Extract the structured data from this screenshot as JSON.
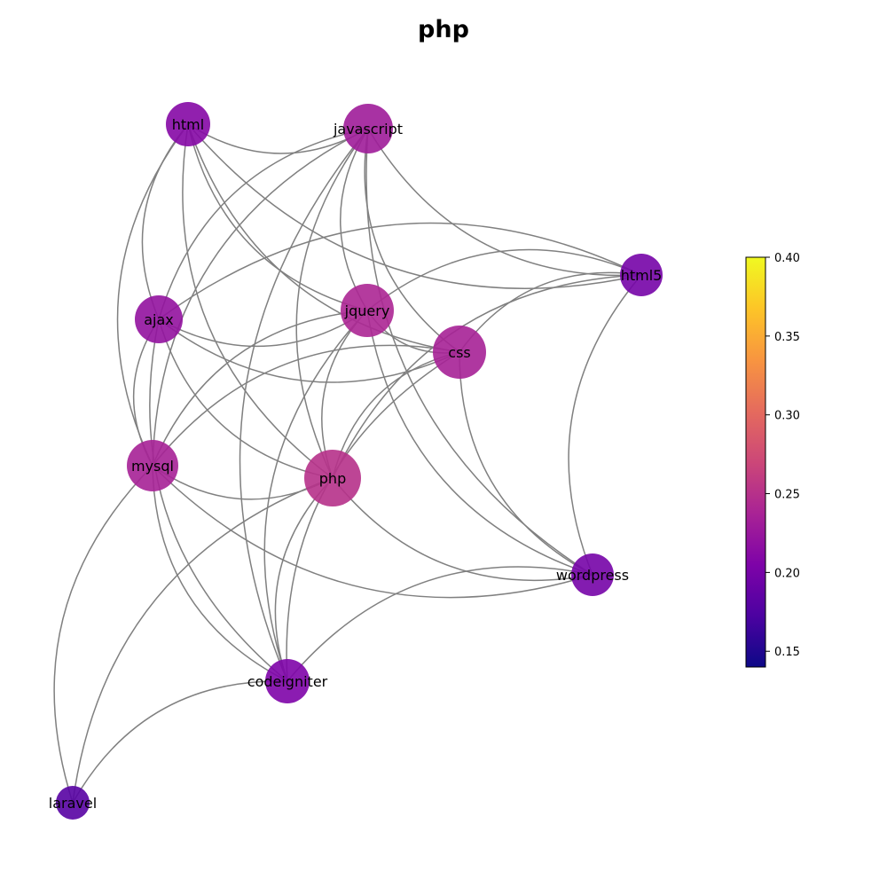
{
  "title": "php",
  "graph": {
    "nodes": [
      {
        "id": "html",
        "label": "html",
        "value": 0.21
      },
      {
        "id": "javascript",
        "label": "javascript",
        "value": 0.23
      },
      {
        "id": "html5",
        "label": "html5",
        "value": 0.2
      },
      {
        "id": "ajax",
        "label": "ajax",
        "value": 0.22
      },
      {
        "id": "jquery",
        "label": "jquery",
        "value": 0.24
      },
      {
        "id": "css",
        "label": "css",
        "value": 0.235
      },
      {
        "id": "mysql",
        "label": "mysql",
        "value": 0.235
      },
      {
        "id": "php",
        "label": "php",
        "value": 0.25
      },
      {
        "id": "wordpress",
        "label": "wordpress",
        "value": 0.2
      },
      {
        "id": "codeigniter",
        "label": "codeigniter",
        "value": 0.205
      },
      {
        "id": "laravel",
        "label": "laravel",
        "value": 0.18
      }
    ],
    "edges": [
      [
        "html",
        "javascript"
      ],
      [
        "html",
        "jquery"
      ],
      [
        "html",
        "css"
      ],
      [
        "html",
        "php"
      ],
      [
        "html",
        "mysql"
      ],
      [
        "html",
        "ajax"
      ],
      [
        "html",
        "html5"
      ],
      [
        "javascript",
        "jquery"
      ],
      [
        "javascript",
        "css"
      ],
      [
        "javascript",
        "html5"
      ],
      [
        "javascript",
        "ajax"
      ],
      [
        "javascript",
        "php"
      ],
      [
        "javascript",
        "mysql"
      ],
      [
        "javascript",
        "wordpress"
      ],
      [
        "javascript",
        "codeigniter"
      ],
      [
        "html5",
        "css"
      ],
      [
        "html5",
        "jquery"
      ],
      [
        "html5",
        "php"
      ],
      [
        "html5",
        "wordpress"
      ],
      [
        "html5",
        "ajax"
      ],
      [
        "ajax",
        "jquery"
      ],
      [
        "ajax",
        "css"
      ],
      [
        "ajax",
        "mysql"
      ],
      [
        "ajax",
        "php"
      ],
      [
        "ajax",
        "codeigniter"
      ],
      [
        "jquery",
        "css"
      ],
      [
        "jquery",
        "php"
      ],
      [
        "jquery",
        "mysql"
      ],
      [
        "jquery",
        "codeigniter"
      ],
      [
        "jquery",
        "wordpress"
      ],
      [
        "css",
        "php"
      ],
      [
        "css",
        "mysql"
      ],
      [
        "css",
        "wordpress"
      ],
      [
        "css",
        "codeigniter"
      ],
      [
        "mysql",
        "php"
      ],
      [
        "mysql",
        "codeigniter"
      ],
      [
        "mysql",
        "laravel"
      ],
      [
        "mysql",
        "wordpress"
      ],
      [
        "php",
        "wordpress"
      ],
      [
        "php",
        "codeigniter"
      ],
      [
        "php",
        "laravel"
      ],
      [
        "wordpress",
        "codeigniter"
      ],
      [
        "codeigniter",
        "laravel"
      ]
    ]
  },
  "colorbar": {
    "colormap": "plasma",
    "min": 0.14,
    "max": 0.4,
    "ticks": [
      "0.15",
      "0.20",
      "0.25",
      "0.30",
      "0.35",
      "0.40"
    ],
    "tick_values": [
      0.15,
      0.2,
      0.25,
      0.3,
      0.35,
      0.4
    ]
  },
  "colors": {
    "edge": "#808080",
    "background": "#ffffff"
  }
}
